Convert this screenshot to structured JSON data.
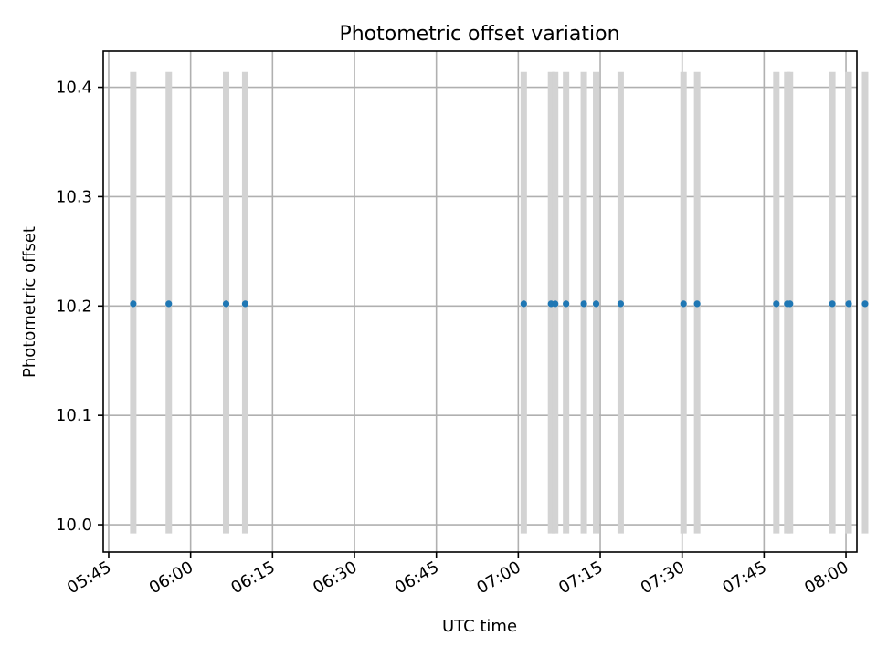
{
  "chart_data": {
    "type": "scatter",
    "title": "Photometric offset variation",
    "xlabel": "UTC time",
    "ylabel": "Photometric offset",
    "x_unit": "time",
    "xlim": [
      "05:44",
      "08:02"
    ],
    "ylim": [
      9.975,
      10.433
    ],
    "x_ticks": [
      "05:45",
      "06:00",
      "06:15",
      "06:30",
      "06:45",
      "07:00",
      "07:15",
      "07:30",
      "07:45",
      "08:00"
    ],
    "y_ticks": [
      10.0,
      10.1,
      10.2,
      10.3,
      10.4
    ],
    "y_tick_labels": [
      "10.0",
      "10.1",
      "10.2",
      "10.3",
      "10.4"
    ],
    "grid": true,
    "marker_color": "#1f77b4",
    "errorbar_color": "#d3d3d3",
    "error_range": [
      9.992,
      10.414
    ],
    "series": [
      {
        "x": [
          "05:49:30",
          "05:56:00",
          "06:06:30",
          "06:10:00",
          "07:01:00",
          "07:06:00",
          "07:06:45",
          "07:08:45",
          "07:12:00",
          "07:14:15",
          "07:18:45",
          "07:30:15",
          "07:32:45",
          "07:47:15",
          "07:49:15",
          "07:49:45",
          "07:57:30",
          "08:00:30",
          "08:03:30"
        ],
        "y": [
          10.202,
          10.202,
          10.202,
          10.202,
          10.202,
          10.202,
          10.202,
          10.202,
          10.202,
          10.202,
          10.202,
          10.202,
          10.202,
          10.202,
          10.202,
          10.202,
          10.202,
          10.202,
          10.202
        ]
      }
    ]
  }
}
